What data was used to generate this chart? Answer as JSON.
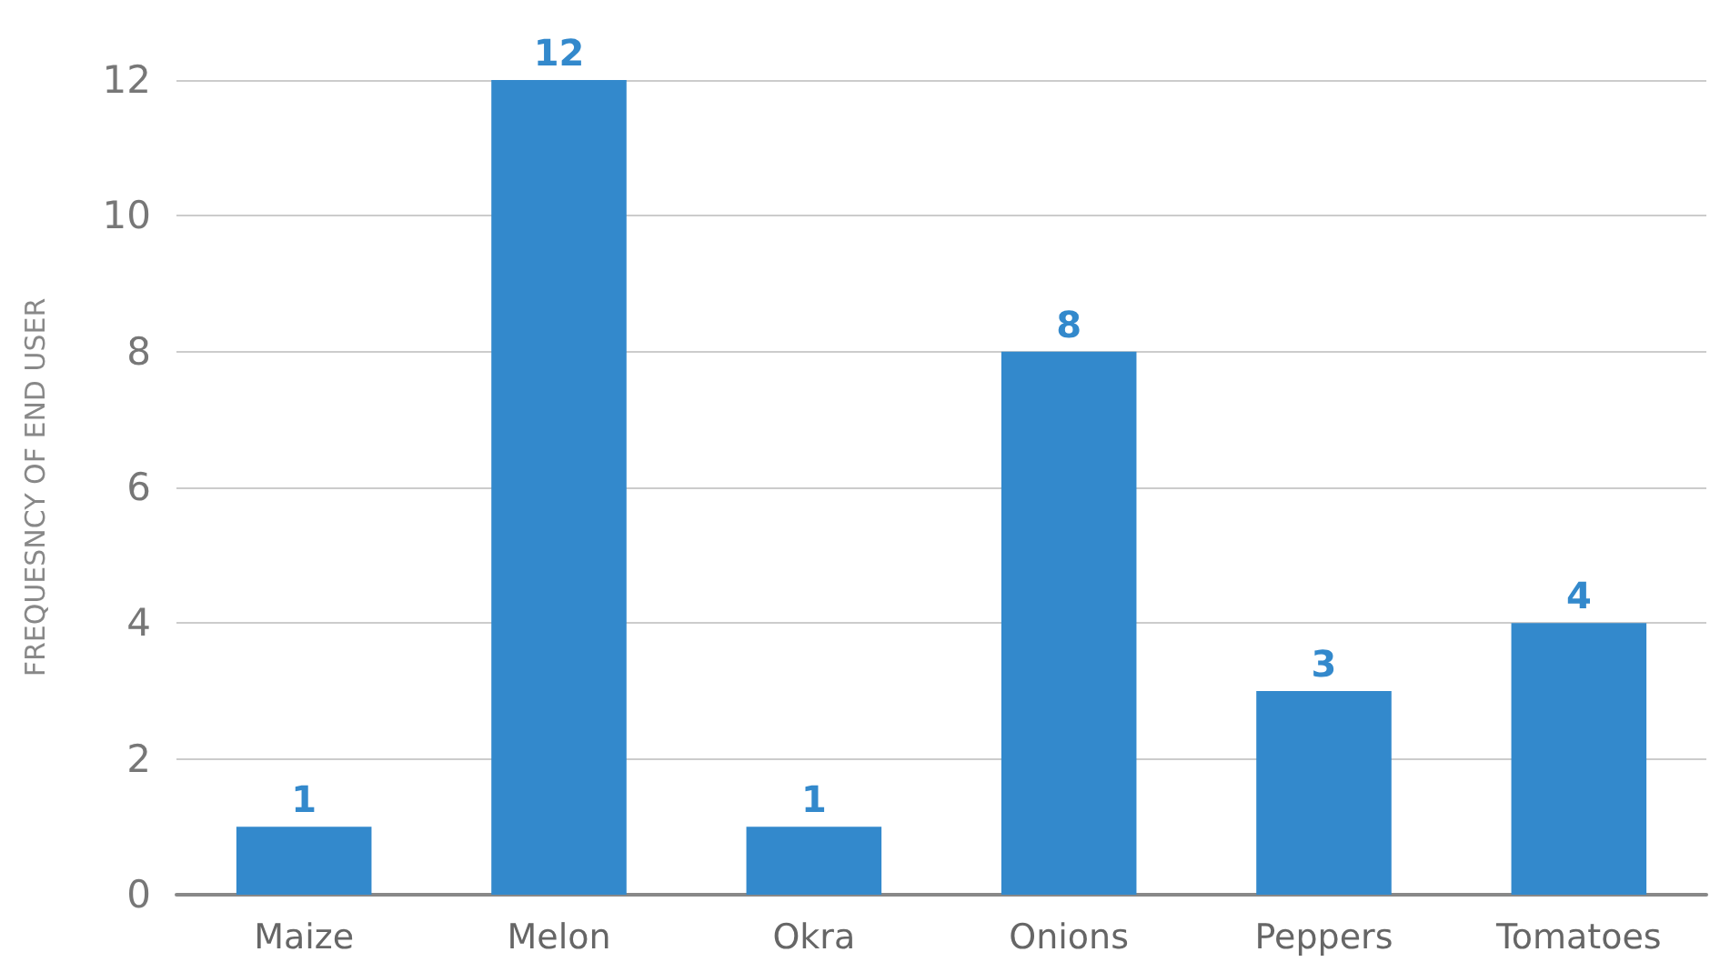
{
  "chart_data": {
    "type": "bar",
    "ylabel": "FREQUESNCY OF END USER",
    "categories": [
      "Maize",
      "Melon",
      "Okra",
      "Onions",
      "Peppers",
      "Tomatoes"
    ],
    "values": [
      1,
      12,
      1,
      8,
      3,
      4
    ],
    "color": "#3389cc",
    "ylim": [
      0,
      12
    ],
    "yticks": [
      0,
      2,
      4,
      6,
      8,
      10,
      12
    ],
    "grid": "y",
    "data_labels": true
  }
}
